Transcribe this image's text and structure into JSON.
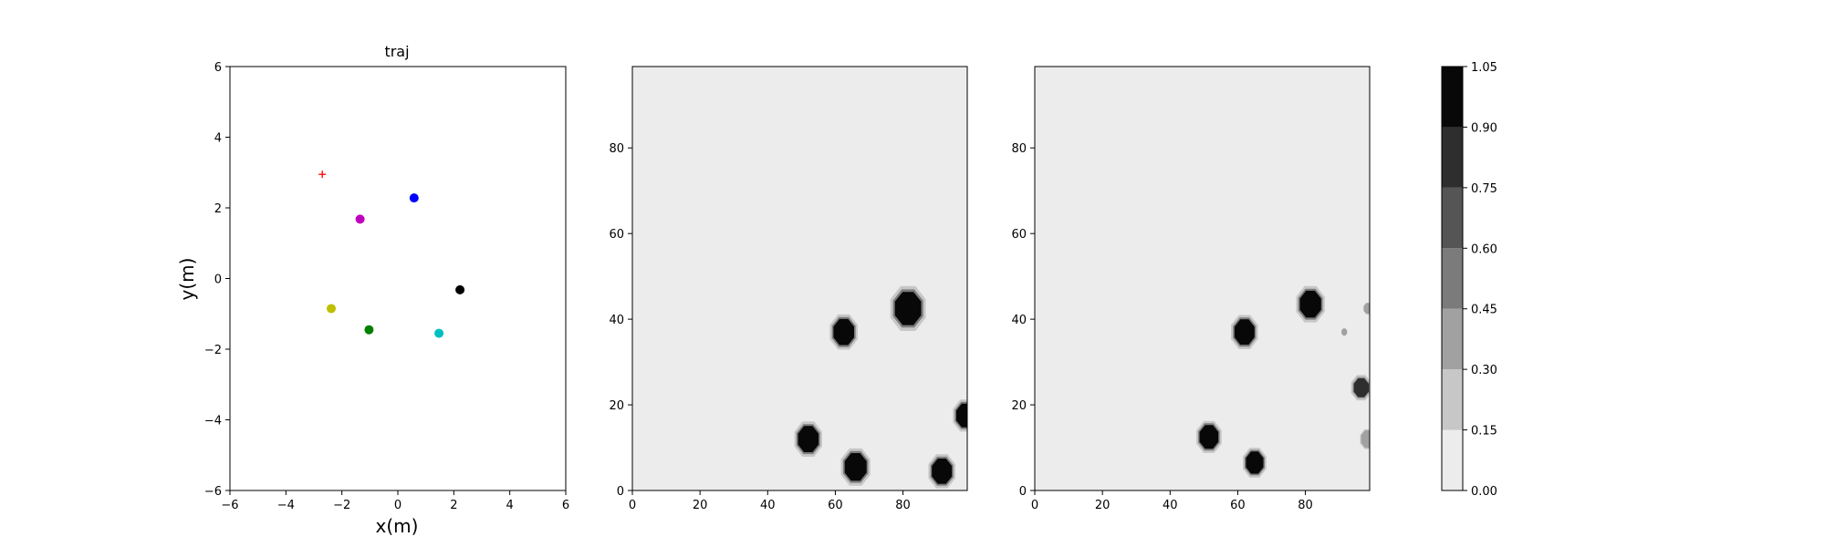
{
  "chart_data": [
    {
      "type": "scatter",
      "title": "traj",
      "xlabel": "x(m)",
      "ylabel": "y(m)",
      "xlim": [
        -6,
        6
      ],
      "ylim": [
        -6,
        6
      ],
      "xticks": [
        "−6",
        "−4",
        "−2",
        "0",
        "2",
        "4",
        "6"
      ],
      "yticks": [
        "−6",
        "−4",
        "−2",
        "0",
        "2",
        "4",
        "6"
      ],
      "grid": false,
      "points": [
        {
          "x": -2.7,
          "y": 2.95,
          "color": "#ff0000",
          "marker": "plus"
        },
        {
          "x": -1.35,
          "y": 1.68,
          "color": "#bf00bf",
          "marker": "dot"
        },
        {
          "x": 0.58,
          "y": 2.28,
          "color": "#0000ff",
          "marker": "dot"
        },
        {
          "x": 2.22,
          "y": -0.32,
          "color": "#000000",
          "marker": "dot"
        },
        {
          "x": -2.38,
          "y": -0.85,
          "color": "#bfbf00",
          "marker": "dot"
        },
        {
          "x": -1.03,
          "y": -1.45,
          "color": "#008000",
          "marker": "dot"
        },
        {
          "x": 1.47,
          "y": -1.55,
          "color": "#00bfbf",
          "marker": "dot"
        }
      ]
    },
    {
      "type": "heatmap",
      "xlim": [
        0,
        99
      ],
      "ylim": [
        0,
        99
      ],
      "xticks": [
        "0",
        "20",
        "40",
        "60",
        "80"
      ],
      "yticks": [
        "0",
        "20",
        "40",
        "60",
        "80"
      ],
      "background_level": 0.05,
      "blobs": [
        {
          "x": 81.5,
          "y": 42.5,
          "r": 4.2,
          "level": 1.0
        },
        {
          "x": 62.5,
          "y": 37.0,
          "r": 3.3,
          "level": 1.0
        },
        {
          "x": 52.0,
          "y": 12.0,
          "r": 3.3,
          "level": 1.0
        },
        {
          "x": 66.0,
          "y": 5.5,
          "r": 3.5,
          "level": 1.0
        },
        {
          "x": 91.5,
          "y": 4.5,
          "r": 3.2,
          "level": 1.0
        },
        {
          "x": 98.5,
          "y": 17.5,
          "r": 3.0,
          "level": 1.0
        }
      ]
    },
    {
      "type": "heatmap",
      "xlim": [
        0,
        99
      ],
      "ylim": [
        0,
        99
      ],
      "xticks": [
        "0",
        "20",
        "40",
        "60",
        "80"
      ],
      "yticks": [
        "0",
        "20",
        "40",
        "60",
        "80"
      ],
      "background_level": 0.05,
      "blobs": [
        {
          "x": 81.5,
          "y": 43.5,
          "r": 3.4,
          "level": 1.0
        },
        {
          "x": 62.0,
          "y": 37.0,
          "r": 3.2,
          "level": 1.0
        },
        {
          "x": 51.5,
          "y": 12.5,
          "r": 3.0,
          "level": 1.0
        },
        {
          "x": 65.0,
          "y": 6.5,
          "r": 2.8,
          "level": 1.0
        },
        {
          "x": 96.5,
          "y": 24.0,
          "r": 2.4,
          "level": 0.8
        },
        {
          "x": 98.5,
          "y": 12.0,
          "r": 2.2,
          "level": 0.4
        },
        {
          "x": 98.5,
          "y": 42.5,
          "r": 1.4,
          "level": 0.3
        },
        {
          "x": 91.5,
          "y": 37.0,
          "r": 0.9,
          "level": 0.3
        }
      ]
    },
    {
      "type": "colorbar",
      "boundaries": [
        0.0,
        0.15,
        0.3,
        0.45,
        0.6,
        0.75,
        0.9,
        1.05
      ],
      "tick_labels": [
        "0.00",
        "0.15",
        "0.30",
        "0.45",
        "0.60",
        "0.75",
        "0.90",
        "1.05"
      ],
      "colors": [
        "#ececec",
        "#c7c7c7",
        "#a1a1a1",
        "#7b7b7b",
        "#555555",
        "#2e2e2e",
        "#080808"
      ]
    }
  ]
}
